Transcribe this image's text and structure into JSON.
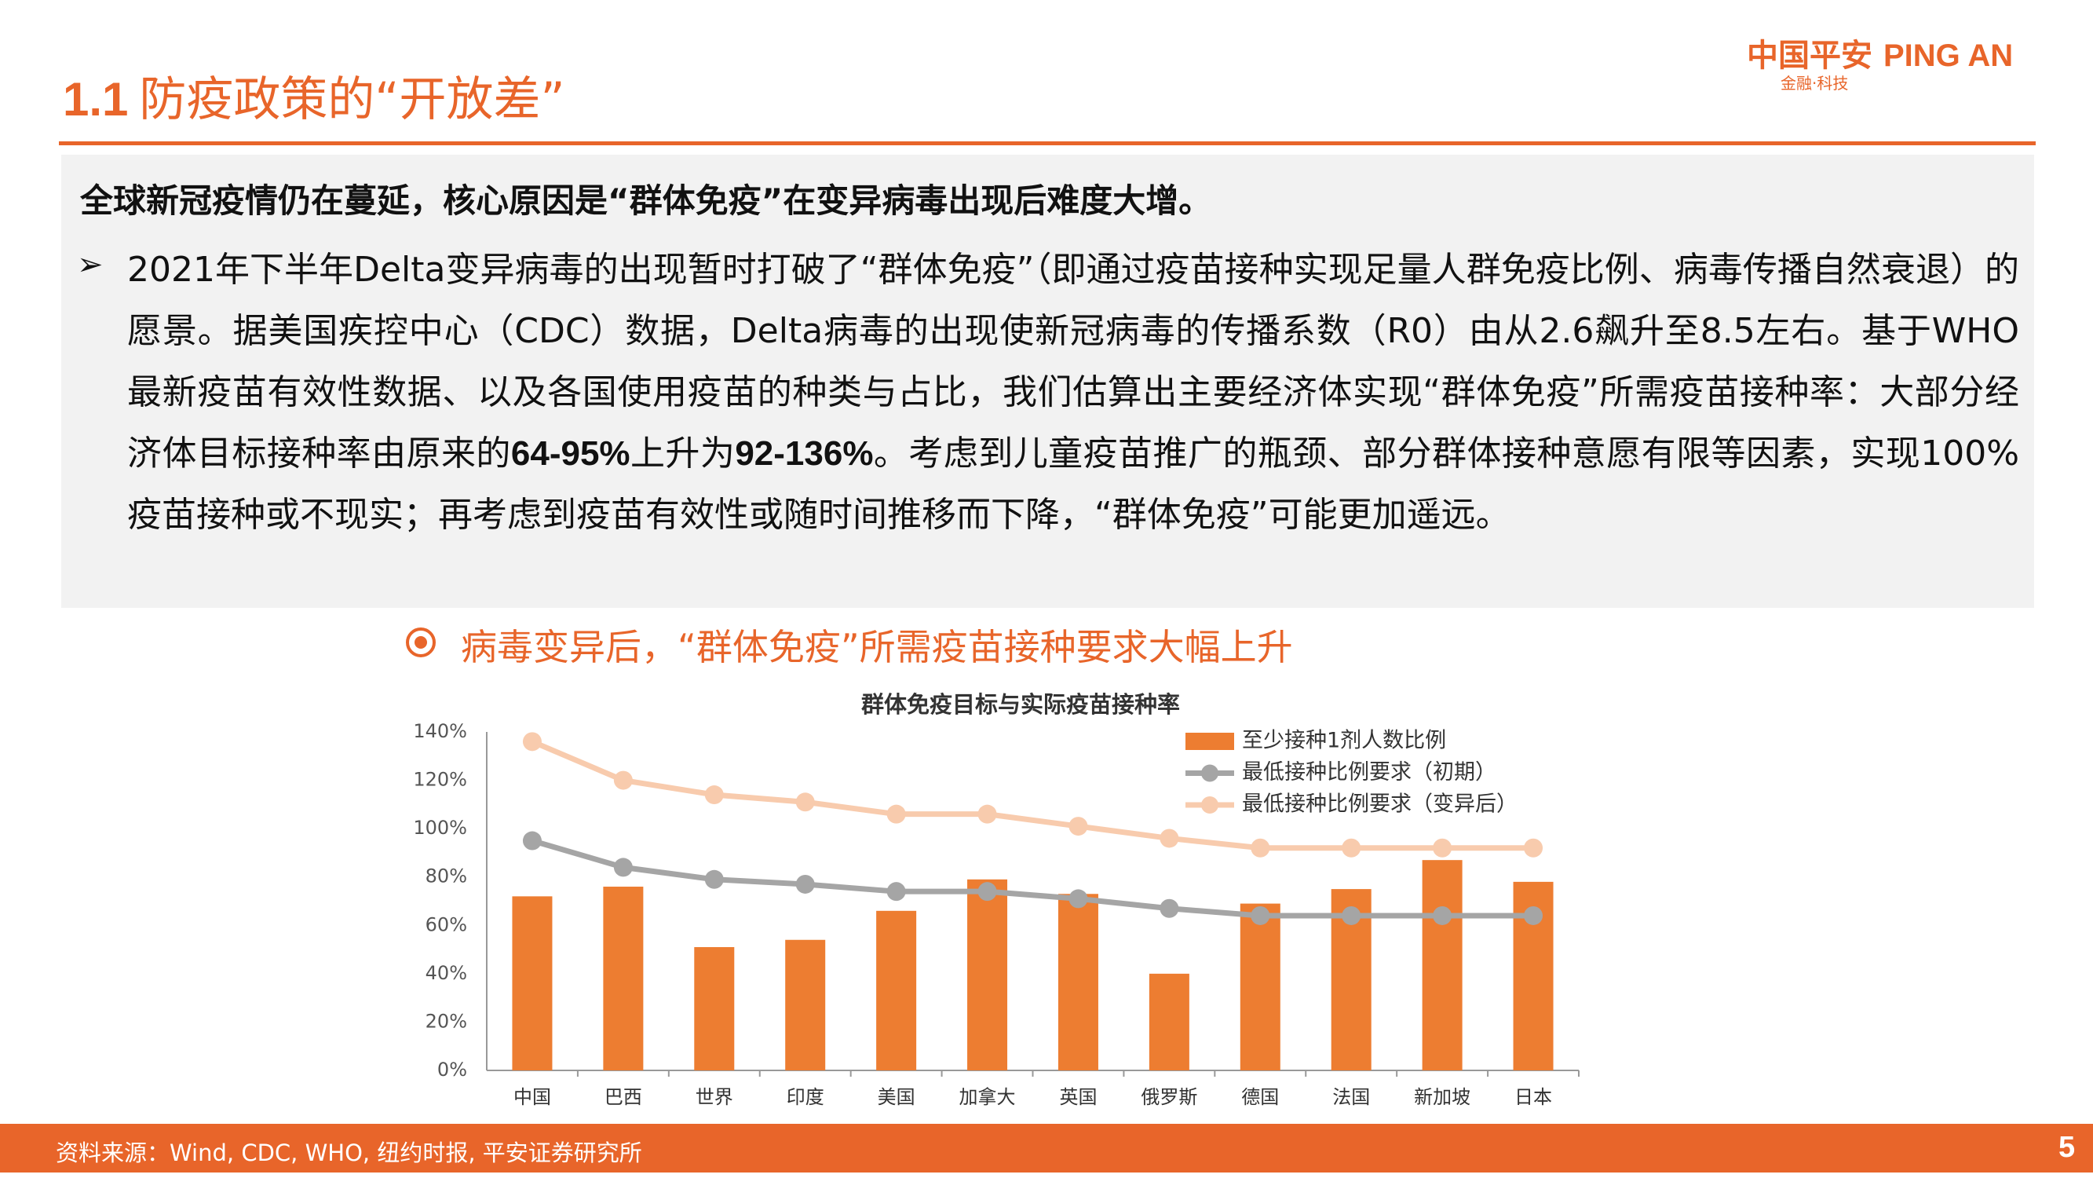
{
  "header": {
    "title_number": "1.1",
    "title": "防疫政策的“开放差”",
    "logo_cn": "中国平安",
    "logo_en": "PING AN",
    "logo_sub": "金融·科技"
  },
  "summary": {
    "heading": "全球新冠疫情仍在蔓延，核心原因是“群体免疫”在变异病毒出现后难度大增。",
    "bullet_marker": "➢",
    "bullet": [
      "2021年下半年Delta变异病毒的出现暂时打破了“群体免疫”（即通过疫苗接种实现足量人群免疫比例、病毒传播自然衰退）的愿景。据美国疾控中心（CDC）数据，Delta病毒的出现使新冠病毒的传播系数（R0）由从2.6飙升至8.5左右。基于WHO最新疫苗有效性数据、以及各国使用疫苗的种类与占比，我们估算出主要经济体实现“群体免疫”所需疫苗接种率：大部分经济体目标接种率由原来的",
      "64-95%",
      "上升为",
      "92-136%",
      "。考虑到儿童疫苗推广的瓶颈、部分群体接种意愿有限等因素，实现100%疫苗接种或不现实；再考虑到疫苗有效性或随时间推移而下降，“群体免疫”可能更加遥远。"
    ]
  },
  "chart_heading": "病毒变异后，“群体免疫”所需疫苗接种要求大幅上升",
  "chart_data": {
    "type": "bar_line",
    "title": "群体免疫目标与实际疫苗接种率",
    "categories": [
      "中国",
      "巴西",
      "世界",
      "印度",
      "美国",
      "加拿大",
      "英国",
      "俄罗斯",
      "德国",
      "法国",
      "新加坡",
      "日本"
    ],
    "series": [
      {
        "name": "至少接种1剂人数比例",
        "type": "bar",
        "color": "#ED7D31",
        "values": [
          72,
          76,
          51,
          54,
          66,
          79,
          73,
          40,
          69,
          75,
          87,
          78
        ]
      },
      {
        "name": "最低接种比例要求（初期）",
        "type": "line",
        "color": "#A5A5A5",
        "values": [
          95,
          84,
          79,
          77,
          74,
          74,
          71,
          67,
          64,
          64,
          64,
          64
        ]
      },
      {
        "name": "最低接种比例要求（变异后）",
        "type": "line",
        "color": "#F8CBAD",
        "values": [
          136,
          120,
          114,
          111,
          106,
          106,
          101,
          96,
          92,
          92,
          92,
          92
        ]
      }
    ],
    "ylim": [
      0,
      140
    ],
    "yticks": [
      {
        "value": 0,
        "label": "0%"
      },
      {
        "value": 20,
        "label": "20%"
      },
      {
        "value": 40,
        "label": "40%"
      },
      {
        "value": 60,
        "label": "60%"
      },
      {
        "value": 80,
        "label": "80%"
      },
      {
        "value": 100,
        "label": "100%"
      },
      {
        "value": 120,
        "label": "120%"
      },
      {
        "value": 140,
        "label": "140%"
      }
    ],
    "grid": false,
    "legend": "top-right"
  },
  "footer": {
    "source": "资料来源：Wind, CDC, WHO, 纽约时报, 平安证券研究所",
    "page": "5"
  }
}
